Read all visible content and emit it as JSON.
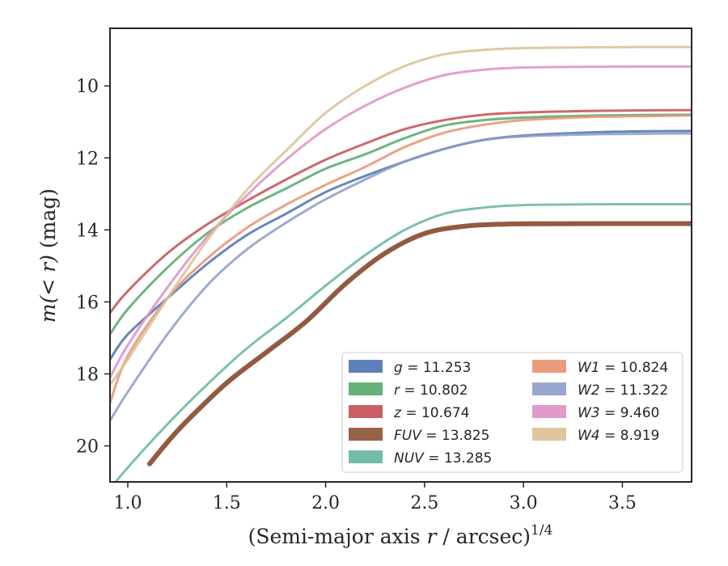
{
  "chart_data": {
    "type": "line",
    "xlabel_main": "(Semi-major axis ",
    "xlabel_var": "r",
    "xlabel_unit": " / arcsec)",
    "xlabel_exp": "1/4",
    "ylabel_main": "m(< r)",
    "ylabel_unit": " (mag)",
    "xlim": [
      0.91,
      3.85
    ],
    "ylim": [
      21.0,
      8.4
    ],
    "y_inverted": true,
    "x_ticks": [
      1.0,
      1.5,
      2.0,
      2.5,
      3.0,
      3.5
    ],
    "x_tick_labels": [
      "1.0",
      "1.5",
      "2.0",
      "2.5",
      "3.0",
      "3.5"
    ],
    "y_ticks": [
      10,
      12,
      14,
      16,
      18,
      20
    ],
    "y_tick_labels": [
      "10",
      "12",
      "14",
      "16",
      "18",
      "20"
    ],
    "grid": false,
    "legend_position": "lower-right",
    "legend_columns": 2,
    "series": [
      {
        "name": "g",
        "label_value": "= 11.253",
        "color": "#4c72b0",
        "x": [
          0.91,
          1.0,
          1.2,
          1.4,
          1.6,
          1.8,
          2.0,
          2.2,
          2.4,
          2.6,
          2.8,
          3.0,
          3.3,
          3.6,
          3.85
        ],
        "y": [
          17.6,
          16.9,
          15.9,
          14.95,
          14.15,
          13.55,
          12.95,
          12.5,
          12.1,
          11.75,
          11.5,
          11.38,
          11.3,
          11.26,
          11.25
        ]
      },
      {
        "name": "r",
        "label_value": "= 10.802",
        "color": "#55a868",
        "x": [
          0.91,
          1.0,
          1.2,
          1.4,
          1.6,
          1.8,
          2.0,
          2.2,
          2.4,
          2.6,
          2.8,
          3.0,
          3.3,
          3.6,
          3.85
        ],
        "y": [
          16.9,
          16.2,
          15.05,
          14.1,
          13.4,
          12.85,
          12.3,
          11.9,
          11.45,
          11.1,
          10.95,
          10.88,
          10.83,
          10.81,
          10.8
        ]
      },
      {
        "name": "z",
        "label_value": "= 10.674",
        "color": "#c44e52",
        "x": [
          0.91,
          1.0,
          1.2,
          1.4,
          1.6,
          1.8,
          2.0,
          2.2,
          2.4,
          2.6,
          2.8,
          3.0,
          3.3,
          3.6,
          3.85
        ],
        "y": [
          16.3,
          15.7,
          14.65,
          13.85,
          13.2,
          12.6,
          12.05,
          11.6,
          11.2,
          10.95,
          10.8,
          10.74,
          10.7,
          10.68,
          10.67
        ]
      },
      {
        "name": "FUV",
        "label_value": "= 13.825",
        "color": "#8c5235",
        "x": [
          1.11,
          1.2,
          1.3,
          1.5,
          1.7,
          1.9,
          2.1,
          2.3,
          2.5,
          2.7,
          2.9,
          3.1,
          3.4,
          3.85
        ],
        "y": [
          20.5,
          19.9,
          19.3,
          18.25,
          17.4,
          16.55,
          15.5,
          14.65,
          14.1,
          13.9,
          13.84,
          13.83,
          13.825,
          13.825
        ]
      },
      {
        "name": "NUV",
        "label_value": "= 13.285",
        "color": "#64b5a0",
        "x": [
          0.91,
          1.0,
          1.2,
          1.4,
          1.6,
          1.8,
          2.0,
          2.2,
          2.4,
          2.6,
          2.8,
          3.0,
          3.3,
          3.6,
          3.85
        ],
        "y": [
          21.2,
          20.6,
          19.4,
          18.3,
          17.3,
          16.45,
          15.55,
          14.7,
          14.0,
          13.55,
          13.38,
          13.31,
          13.29,
          13.285,
          13.285
        ]
      },
      {
        "name": "W1",
        "label_value": "= 10.824",
        "color": "#e8926f",
        "x": [
          0.91,
          1.0,
          1.2,
          1.4,
          1.6,
          1.8,
          2.0,
          2.2,
          2.4,
          2.6,
          2.8,
          3.0,
          3.3,
          3.6,
          3.85
        ],
        "y": [
          18.8,
          17.5,
          15.9,
          14.8,
          13.95,
          13.3,
          12.75,
          12.25,
          11.7,
          11.3,
          11.08,
          10.95,
          10.87,
          10.84,
          10.82
        ]
      },
      {
        "name": "W2",
        "label_value": "= 11.322",
        "color": "#8c9cc6",
        "x": [
          0.91,
          1.0,
          1.2,
          1.4,
          1.6,
          1.8,
          2.0,
          2.2,
          2.4,
          2.6,
          2.8,
          3.0,
          3.3,
          3.6,
          3.85
        ],
        "y": [
          19.3,
          18.5,
          16.9,
          15.55,
          14.55,
          13.8,
          13.15,
          12.6,
          12.1,
          11.75,
          11.5,
          11.4,
          11.35,
          11.33,
          11.32
        ]
      },
      {
        "name": "W3",
        "label_value": "= 9.460",
        "color": "#dd8fc4",
        "x": [
          0.91,
          1.0,
          1.2,
          1.4,
          1.6,
          1.8,
          2.0,
          2.2,
          2.4,
          2.6,
          2.8,
          3.0,
          3.3,
          3.6,
          3.85
        ],
        "y": [
          18.1,
          17.2,
          15.6,
          14.2,
          13.05,
          12.05,
          11.2,
          10.55,
          10.05,
          9.7,
          9.55,
          9.49,
          9.47,
          9.462,
          9.46
        ]
      },
      {
        "name": "W4",
        "label_value": "= 8.919",
        "color": "#dbc092",
        "x": [
          0.91,
          1.0,
          1.2,
          1.4,
          1.6,
          1.8,
          2.0,
          2.2,
          2.4,
          2.6,
          2.8,
          3.0,
          3.3,
          3.6,
          3.85
        ],
        "y": [
          18.3,
          17.6,
          15.9,
          14.3,
          12.9,
          11.8,
          10.75,
          10.0,
          9.45,
          9.12,
          9.0,
          8.95,
          8.93,
          8.92,
          8.919
        ]
      }
    ]
  }
}
